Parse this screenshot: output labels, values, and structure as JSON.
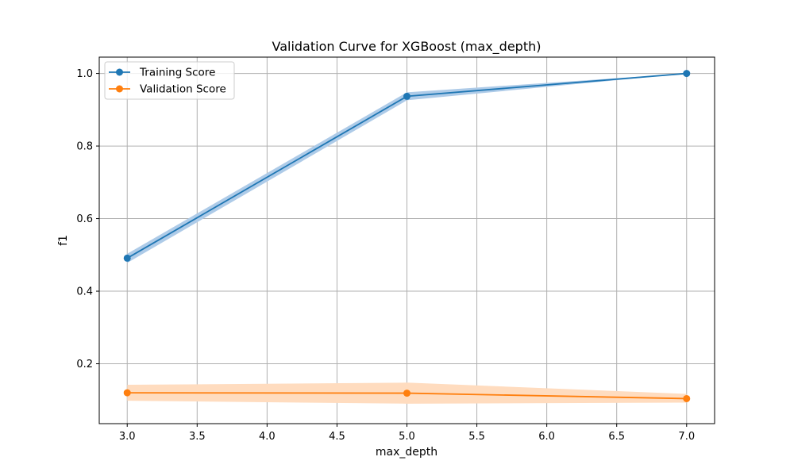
{
  "chart_data": {
    "type": "line",
    "title": "Validation Curve for XGBoost (max_depth)",
    "xlabel": "max_depth",
    "ylabel": "f1",
    "x": [
      3,
      5,
      7
    ],
    "xlim": [
      2.8,
      7.2
    ],
    "ylim": [
      0.035,
      1.045
    ],
    "xticks": [
      "3.0",
      "3.5",
      "4.0",
      "4.5",
      "5.0",
      "5.5",
      "6.0",
      "6.5",
      "7.0"
    ],
    "yticks": [
      "0.2",
      "0.4",
      "0.6",
      "0.8",
      "1.0"
    ],
    "grid": true,
    "legend_position": "top-left",
    "series": [
      {
        "name": "Training Score",
        "color": "#1f77b4",
        "band_color": "#aecbe8",
        "values": [
          0.491,
          0.937,
          1.0
        ],
        "band_low": [
          0.478,
          0.926,
          1.0
        ],
        "band_high": [
          0.503,
          0.948,
          1.0
        ]
      },
      {
        "name": "Validation Score",
        "color": "#ff7f0e",
        "band_color": "#ffdcbf",
        "values": [
          0.12,
          0.119,
          0.104
        ],
        "band_low": [
          0.098,
          0.09,
          0.093
        ],
        "band_high": [
          0.142,
          0.148,
          0.117
        ]
      }
    ]
  }
}
